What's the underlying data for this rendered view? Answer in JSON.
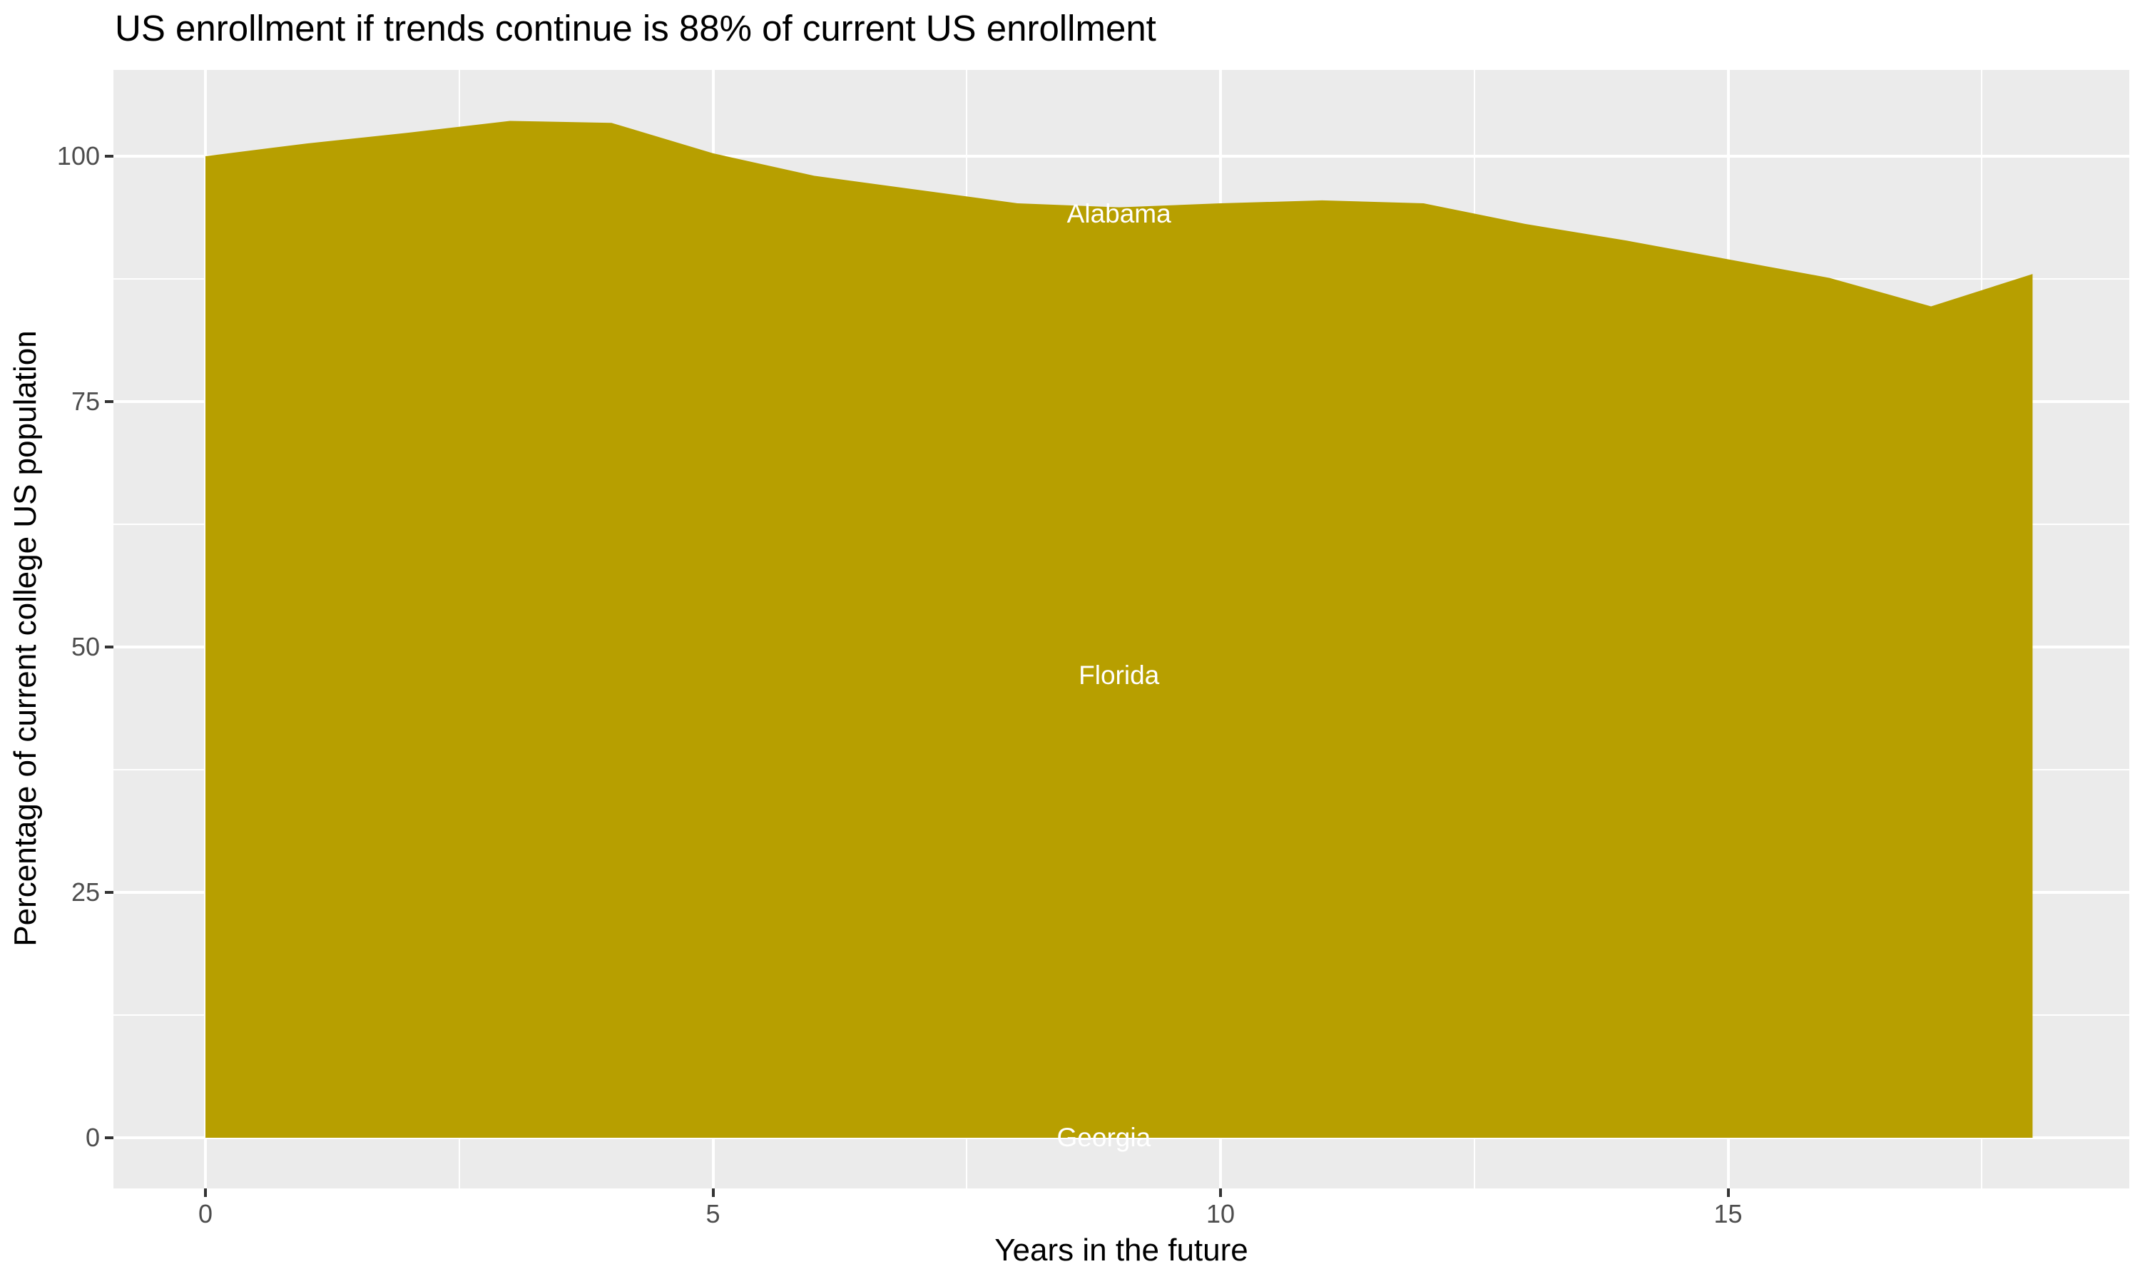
{
  "chart_data": {
    "type": "area",
    "title": "US enrollment if trends continue is 88% of current US enrollment",
    "xlabel": "Years in the future",
    "ylabel": "Percentage of current college US population",
    "x": [
      0,
      1,
      2,
      3,
      4,
      5,
      6,
      7,
      8,
      9,
      10,
      11,
      12,
      13,
      14,
      15,
      16,
      17,
      18
    ],
    "total_values": [
      100.0,
      101.3,
      102.4,
      103.6,
      103.4,
      100.3,
      98.0,
      96.6,
      95.2,
      94.8,
      95.2,
      95.5,
      95.2,
      93.1,
      91.4,
      89.5,
      87.6,
      84.7,
      88.0
    ],
    "area_labels": [
      {
        "label": "Alabama",
        "x": 9.0,
        "y": 94.1
      },
      {
        "label": "Florida",
        "x": 9.0,
        "y": 47.1
      },
      {
        "label": "Georgia",
        "x": 8.85,
        "y": 0.0
      }
    ],
    "x_ticks": [
      "0",
      "5",
      "10",
      "15"
    ],
    "x_tick_values": [
      0,
      5,
      10,
      15
    ],
    "y_ticks": [
      "0",
      "25",
      "50",
      "75",
      "100"
    ],
    "y_tick_values": [
      0,
      25,
      50,
      75,
      100
    ],
    "xlim": [
      -0.9,
      18.9
    ],
    "ylim": [
      -5.2,
      108.8
    ],
    "grid": true,
    "legend": "none",
    "colors": {
      "fill": "#B79F00",
      "panel_background": "#EBEBEB",
      "gridline_major": "#FFFFFF",
      "gridline_minor": "#FFFFFF",
      "tick_label": "#4D4D4D",
      "tick_mark": "#333333",
      "area_label_text": "#FFFFFF",
      "title_text": "#000000"
    }
  }
}
